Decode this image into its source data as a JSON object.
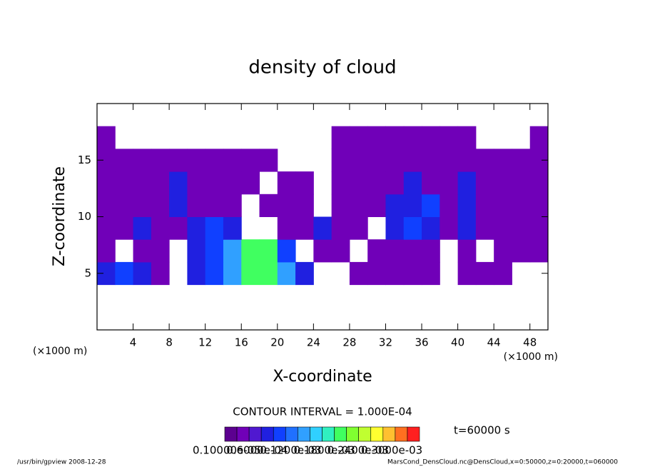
{
  "chart_data": {
    "type": "contour",
    "title": "density of cloud",
    "x_label": "X-coordinate",
    "y_label": "Z-coordinate",
    "x_unit": "(×1000 m)",
    "xlim": [
      0,
      50
    ],
    "ylim": [
      0,
      20
    ],
    "xticks": [
      4,
      8,
      12,
      16,
      20,
      24,
      28,
      32,
      36,
      40,
      44,
      48
    ],
    "yticks": [
      5,
      10,
      15
    ],
    "x": [
      1,
      3,
      5,
      7,
      9,
      11,
      13,
      15,
      17,
      19,
      21,
      23,
      25,
      27,
      29,
      31,
      33,
      35,
      37,
      39,
      41,
      43,
      45,
      47,
      49
    ],
    "z": [
      1,
      3,
      5,
      7,
      9,
      11,
      13,
      15,
      17,
      19
    ],
    "values": [
      [
        null,
        null,
        null,
        null,
        null,
        null,
        null,
        null,
        null,
        null,
        null,
        null,
        null,
        null,
        null,
        null,
        null,
        null,
        null,
        null,
        null,
        null,
        null,
        null,
        null
      ],
      [
        null,
        null,
        null,
        null,
        null,
        null,
        null,
        null,
        null,
        null,
        null,
        null,
        null,
        null,
        null,
        null,
        null,
        null,
        null,
        null,
        null,
        null,
        null,
        null,
        null
      ],
      [
        6e-05,
        9e-05,
        6e-05,
        2.5e-05,
        null,
        6e-05,
        9e-05,
        0.00012,
        0.000175,
        0.000175,
        0.00012,
        6e-05,
        null,
        null,
        2.5e-05,
        2.5e-05,
        2.5e-05,
        2.5e-05,
        2.5e-05,
        null,
        2.5e-05,
        2.5e-05,
        2.5e-05,
        null,
        null
      ],
      [
        2.5e-05,
        null,
        2.5e-05,
        2.5e-05,
        null,
        6e-05,
        9e-05,
        0.00012,
        0.000175,
        0.000175,
        9e-05,
        null,
        2.5e-05,
        2.5e-05,
        null,
        2.5e-05,
        2.5e-05,
        2.5e-05,
        2.5e-05,
        null,
        2.5e-05,
        null,
        2.5e-05,
        2.5e-05,
        2.5e-05
      ],
      [
        2.5e-05,
        2.5e-05,
        6e-05,
        2.5e-05,
        2.5e-05,
        6e-05,
        9e-05,
        6e-05,
        null,
        null,
        2.5e-05,
        2.5e-05,
        6e-05,
        2.5e-05,
        2.5e-05,
        null,
        6e-05,
        9e-05,
        6e-05,
        2.5e-05,
        6e-05,
        2.5e-05,
        2.5e-05,
        2.5e-05,
        2.5e-05
      ],
      [
        2.5e-05,
        2.5e-05,
        2.5e-05,
        2.5e-05,
        6e-05,
        2.5e-05,
        2.5e-05,
        2.5e-05,
        null,
        2.5e-05,
        2.5e-05,
        2.5e-05,
        null,
        2.5e-05,
        2.5e-05,
        2.5e-05,
        6e-05,
        6e-05,
        9e-05,
        2.5e-05,
        6e-05,
        2.5e-05,
        2.5e-05,
        2.5e-05,
        2.5e-05
      ],
      [
        2.5e-05,
        2.5e-05,
        2.5e-05,
        2.5e-05,
        6e-05,
        2.5e-05,
        2.5e-05,
        2.5e-05,
        2.5e-05,
        null,
        2.5e-05,
        2.5e-05,
        null,
        2.5e-05,
        2.5e-05,
        2.5e-05,
        2.5e-05,
        6e-05,
        2.5e-05,
        2.5e-05,
        6e-05,
        2.5e-05,
        2.5e-05,
        2.5e-05,
        2.5e-05
      ],
      [
        2.5e-05,
        2.5e-05,
        2.5e-05,
        2.5e-05,
        2.5e-05,
        2.5e-05,
        2.5e-05,
        2.5e-05,
        2.5e-05,
        2.5e-05,
        null,
        null,
        null,
        2.5e-05,
        2.5e-05,
        2.5e-05,
        2.5e-05,
        2.5e-05,
        2.5e-05,
        2.5e-05,
        2.5e-05,
        2.5e-05,
        2.5e-05,
        2.5e-05,
        2.5e-05
      ],
      [
        2.5e-05,
        null,
        null,
        null,
        null,
        null,
        null,
        null,
        null,
        null,
        null,
        null,
        null,
        2.5e-05,
        2.5e-05,
        2.5e-05,
        2.5e-05,
        2.5e-05,
        2.5e-05,
        2.5e-05,
        2.5e-05,
        null,
        null,
        null,
        2.5e-05
      ],
      [
        null,
        null,
        null,
        null,
        null,
        null,
        null,
        null,
        null,
        null,
        null,
        null,
        null,
        null,
        null,
        null,
        null,
        null,
        null,
        null,
        null,
        null,
        null,
        null,
        null
      ]
    ],
    "clim": [
      0,
      0.0003
    ],
    "colors": [
      "#5c0090",
      "#7000b8",
      "#5018d0",
      "#2020e0",
      "#1040ff",
      "#2070ff",
      "#30a0ff",
      "#30d0ff",
      "#30f0c0",
      "#40ff60",
      "#80ff30",
      "#c0ff30",
      "#ffff30",
      "#ffc030",
      "#ff7020",
      "#ff2020"
    ],
    "contour_interval": "CONTOUR INTERVAL = 1.000E-04",
    "time_label": "t=60000 s",
    "colorbar_labels": [
      "0.10000e-05",
      "0.6000e-04",
      "0.1200e-03",
      "0.1800e-03",
      "0.2400e-03",
      "0.3000e-03"
    ],
    "footer_left": "/usr/bin/gpview   2008-12-28",
    "footer_right": "MarsCond_DensCloud.nc@DensCloud,x=0:50000,z=0:20000,t=060000"
  }
}
